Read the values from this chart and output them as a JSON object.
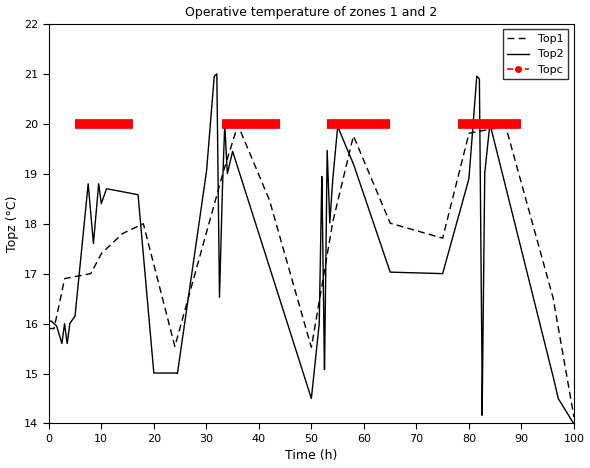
{
  "title": "Operative temperature of zones 1 and 2",
  "xlabel": "Time (h)",
  "ylabel": "Topz (°C)",
  "xlim": [
    0,
    100
  ],
  "ylim": [
    14,
    22
  ],
  "xticks": [
    0,
    10,
    20,
    30,
    40,
    50,
    60,
    70,
    80,
    90,
    100
  ],
  "yticks": [
    14,
    15,
    16,
    17,
    18,
    19,
    20,
    21,
    22
  ],
  "red_bars": [
    {
      "x1": 5,
      "x2": 16,
      "y": 20.0
    },
    {
      "x1": 33,
      "x2": 44,
      "y": 20.0
    },
    {
      "x1": 53,
      "x2": 65,
      "y": 20.0
    },
    {
      "x1": 78,
      "x2": 90,
      "y": 20.0
    }
  ],
  "legend_labels": [
    "Top1",
    "Top2",
    "Topc"
  ],
  "topc_value": 20.0,
  "background_color": "#ffffff"
}
